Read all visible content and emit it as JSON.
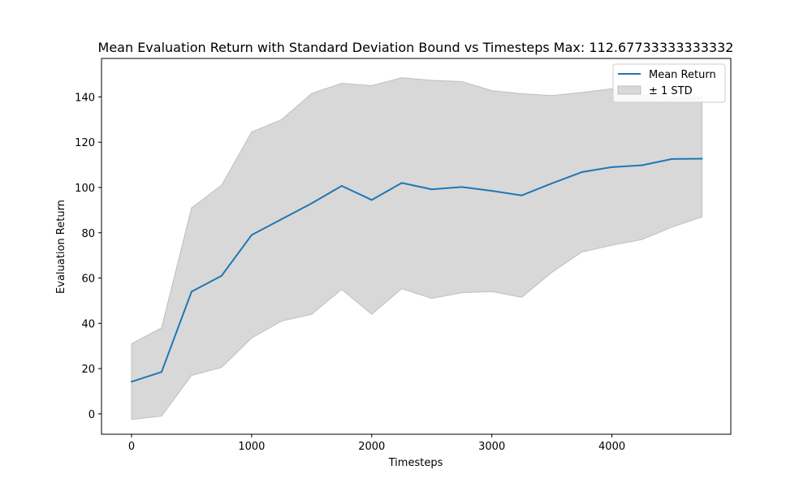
{
  "chart_data": {
    "type": "line",
    "title": "Mean Evaluation Return with Standard Deviation Bound vs Timesteps Max: 112.67733333333332",
    "xlabel": "Timesteps",
    "ylabel": "Evaluation Return",
    "xlim": [
      -250,
      4990
    ],
    "ylim": [
      -9,
      157
    ],
    "xticks": [
      0,
      1000,
      2000,
      3000,
      4000
    ],
    "yticks": [
      0,
      20,
      40,
      60,
      80,
      100,
      120,
      140
    ],
    "legend_position": "top-right",
    "grid": false,
    "x": [
      0,
      250,
      500,
      750,
      1000,
      1250,
      1500,
      1750,
      2000,
      2250,
      2500,
      2750,
      3000,
      3250,
      3500,
      3750,
      4000,
      4250,
      4500,
      4750
    ],
    "series": [
      {
        "name": "Mean Return",
        "color": "#1f77b4",
        "values": [
          14.2,
          18.5,
          54.0,
          61.0,
          79.0,
          86.0,
          93.0,
          100.7,
          94.5,
          102.0,
          99.2,
          100.2,
          98.5,
          96.5,
          101.8,
          106.8,
          109.0,
          109.8,
          112.6,
          112.7
        ]
      }
    ],
    "band": {
      "name": "± 1 STD",
      "color": "#d8d8d8",
      "edge_color": "#bfbfbf",
      "upper": [
        31.0,
        38.0,
        91.0,
        101.0,
        124.5,
        130.0,
        141.5,
        146.0,
        145.0,
        148.5,
        147.3,
        146.8,
        142.8,
        141.4,
        140.6,
        142.0,
        143.6,
        141.0,
        140.0,
        140.0
      ],
      "lower": [
        -2.5,
        -1.0,
        17.0,
        20.5,
        33.5,
        41.0,
        44.0,
        55.0,
        44.0,
        55.3,
        51.0,
        53.5,
        54.0,
        51.5,
        62.5,
        71.5,
        74.5,
        77.0,
        82.5,
        87.0
      ]
    }
  }
}
